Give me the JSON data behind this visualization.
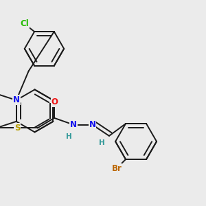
{
  "bg": "#ebebeb",
  "lc": "#1a1a1a",
  "lw": 1.4,
  "fs": 8.5,
  "colors": {
    "N": "#1010ee",
    "S": "#b8a000",
    "O": "#ee1010",
    "Cl": "#22bb00",
    "Br": "#bb6600",
    "H": "#339999",
    "C": "#1a1a1a"
  },
  "dbo": 0.018
}
